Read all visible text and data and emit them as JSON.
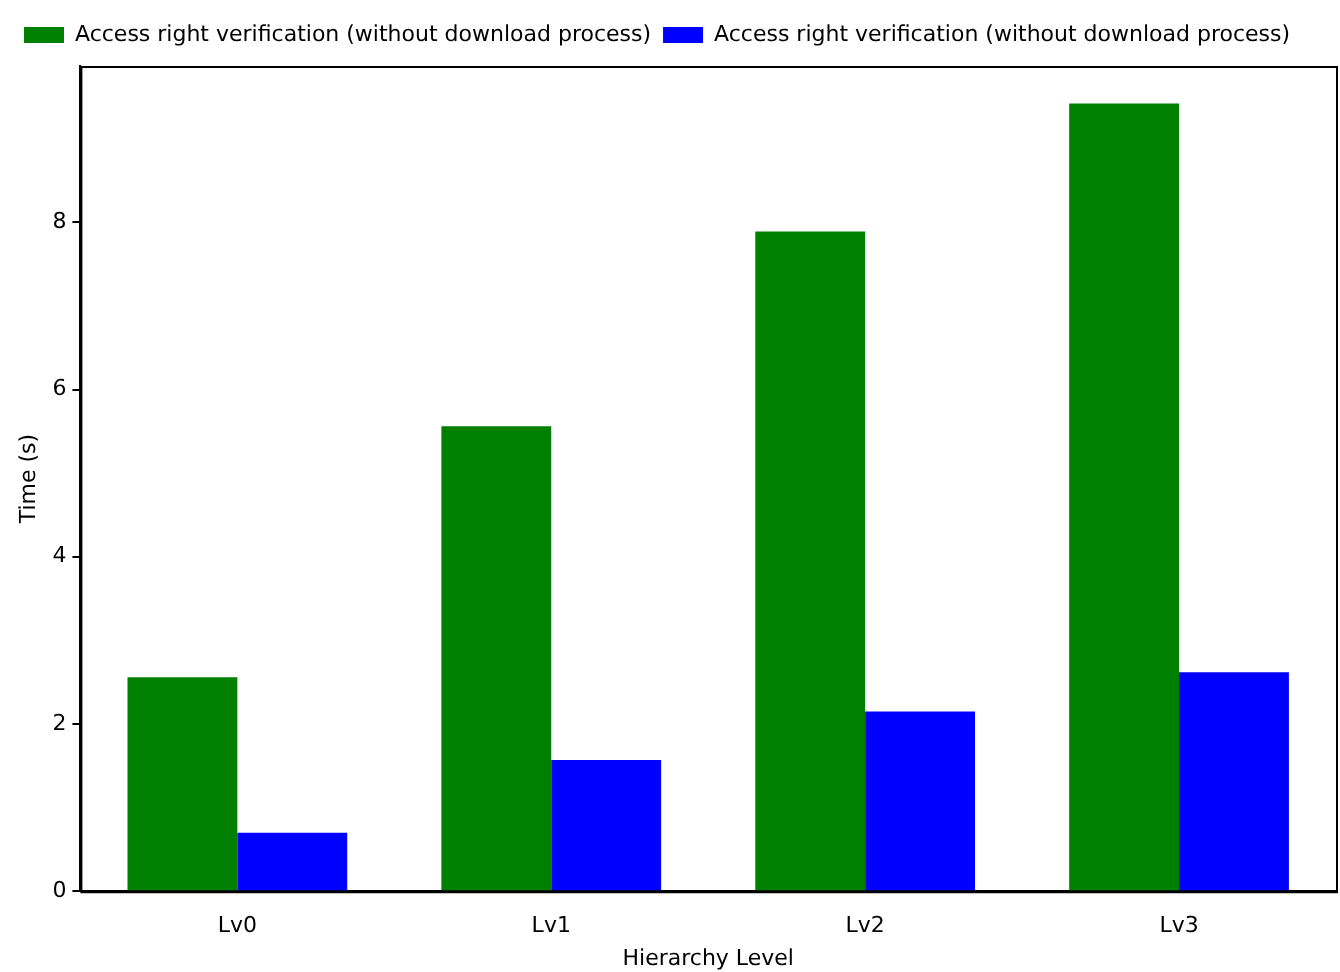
{
  "chart_data": {
    "type": "bar",
    "xlabel": "Hierarchy Level",
    "ylabel": "Time (s)",
    "categories": [
      "Lv0",
      "Lv1",
      "Lv2",
      "Lv3"
    ],
    "series": [
      {
        "name": "Access right verification (without download process)",
        "color": "#008000",
        "values": [
          2.56,
          5.56,
          7.89,
          9.42
        ]
      },
      {
        "name": "Access right verification (without download process)",
        "color": "#0000ff",
        "values": [
          0.7,
          1.57,
          2.15,
          2.62
        ]
      }
    ],
    "ylim": [
      0,
      9.87
    ],
    "yticks": [
      0,
      2,
      4,
      6,
      8
    ],
    "grid": false,
    "legend": "top left"
  }
}
